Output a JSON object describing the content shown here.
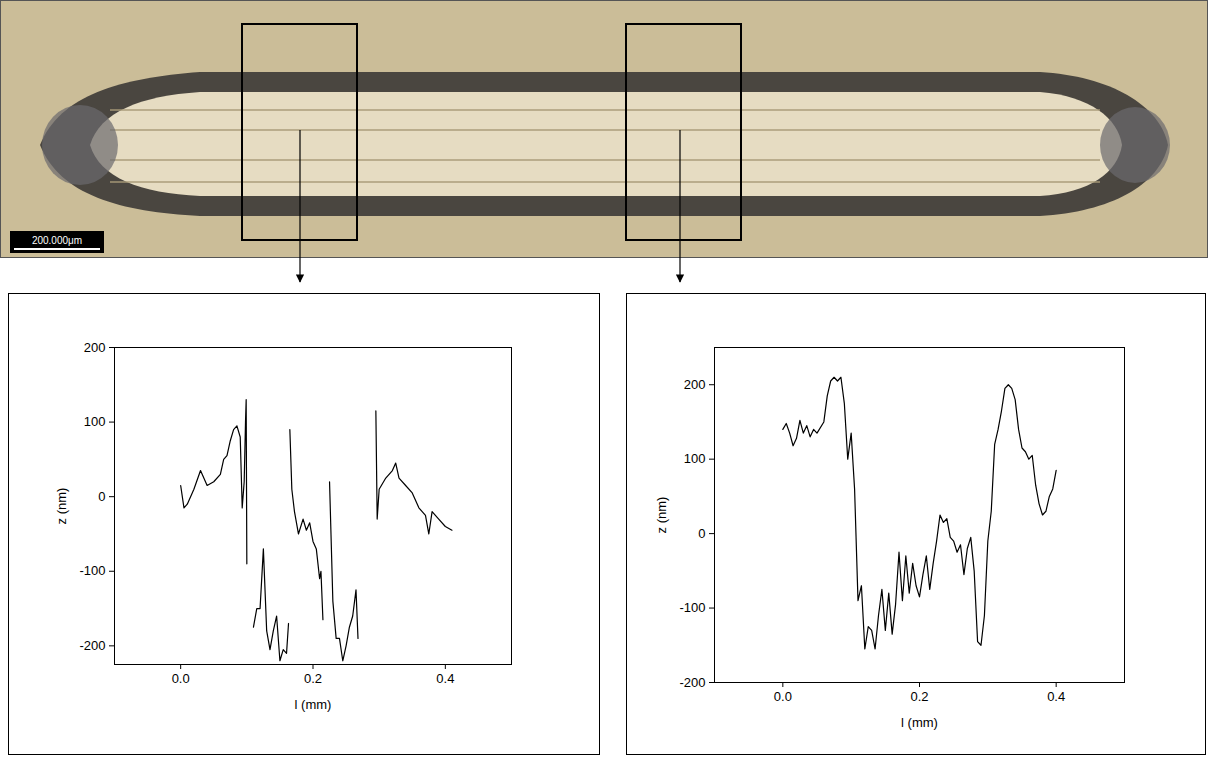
{
  "micrograph": {
    "scale_bar": "200.000μm"
  },
  "chart_data": [
    {
      "type": "line",
      "xlabel": "l (mm)",
      "ylabel": "z (nm)",
      "color": "#000000",
      "xlim": [
        -0.1,
        0.5
      ],
      "ylim": [
        -225,
        200
      ],
      "xticks": [
        {
          "value": 0,
          "label": "0.0"
        },
        {
          "value": 0.2,
          "label": "0.2"
        },
        {
          "value": 0.4,
          "label": "0.4"
        }
      ],
      "yticks": [
        -200,
        -100,
        0,
        100,
        200
      ],
      "x": [
        0,
        0.005,
        0.01,
        0.02,
        0.03,
        0.04,
        0.05,
        0.06,
        0.065,
        0.07,
        0.075,
        0.08,
        0.085,
        0.09,
        0.093,
        0.096,
        0.098,
        0.099,
        0.1,
        0.105,
        0.11,
        0.115,
        0.12,
        0.125,
        0.13,
        0.135,
        0.14,
        0.145,
        0.15,
        0.155,
        0.16,
        0.163,
        0.164,
        0.165,
        0.168,
        0.172,
        0.178,
        0.185,
        0.19,
        0.195,
        0.2,
        0.205,
        0.21,
        0.212,
        0.215,
        0.22,
        0.225,
        0.23,
        0.235,
        0.24,
        0.245,
        0.25,
        0.255,
        0.26,
        0.265,
        0.268,
        0.28,
        0.295,
        0.297,
        0.3,
        0.31,
        0.32,
        0.325,
        0.33,
        0.34,
        0.35,
        0.36,
        0.37,
        0.375,
        0.38,
        0.39,
        0.4,
        0.41
      ],
      "values": [
        15,
        -15,
        -10,
        10,
        35,
        15,
        20,
        30,
        50,
        55,
        75,
        90,
        95,
        80,
        -15,
        20,
        100,
        130,
        -90,
        null,
        -175,
        -150,
        -150,
        -70,
        -180,
        -205,
        -180,
        -160,
        -220,
        -205,
        -210,
        -170,
        null,
        90,
        10,
        -20,
        -50,
        -30,
        -45,
        -35,
        -60,
        -70,
        -110,
        -100,
        -165,
        null,
        20,
        -140,
        -190,
        -190,
        -220,
        -200,
        -175,
        -160,
        -125,
        -190,
        null,
        115,
        -30,
        10,
        25,
        35,
        45,
        25,
        15,
        5,
        -15,
        -25,
        -50,
        -20,
        -30,
        -40,
        -45
      ]
    },
    {
      "type": "line",
      "xlabel": "l (mm)",
      "ylabel": "z (nm)",
      "color": "#000000",
      "xlim": [
        -0.1,
        0.5
      ],
      "ylim": [
        -200,
        250
      ],
      "xticks": [
        {
          "value": 0,
          "label": "0.0"
        },
        {
          "value": 0.2,
          "label": "0.2"
        },
        {
          "value": 0.4,
          "label": "0.4"
        }
      ],
      "yticks": [
        -200,
        -100,
        0,
        100,
        200
      ],
      "x": [
        0,
        0.005,
        0.01,
        0.015,
        0.02,
        0.025,
        0.03,
        0.035,
        0.04,
        0.045,
        0.05,
        0.06,
        0.065,
        0.07,
        0.075,
        0.08,
        0.085,
        0.09,
        0.095,
        0.1,
        0.105,
        0.11,
        0.115,
        0.12,
        0.125,
        0.13,
        0.135,
        0.14,
        0.145,
        0.15,
        0.155,
        0.16,
        0.165,
        0.17,
        0.175,
        0.18,
        0.185,
        0.19,
        0.195,
        0.2,
        0.205,
        0.21,
        0.215,
        0.22,
        0.225,
        0.23,
        0.235,
        0.24,
        0.245,
        0.25,
        0.255,
        0.26,
        0.265,
        0.27,
        0.275,
        0.28,
        0.285,
        0.29,
        0.295,
        0.3,
        0.305,
        0.31,
        0.315,
        0.32,
        0.325,
        0.33,
        0.335,
        0.34,
        0.345,
        0.35,
        0.355,
        0.36,
        0.365,
        0.37,
        0.375,
        0.38,
        0.385,
        0.39,
        0.395,
        0.4
      ],
      "values": [
        140,
        148,
        135,
        118,
        128,
        152,
        135,
        145,
        130,
        140,
        135,
        150,
        185,
        205,
        210,
        205,
        210,
        175,
        100,
        135,
        60,
        -90,
        -70,
        -155,
        -125,
        -130,
        -155,
        -110,
        -75,
        -130,
        -80,
        -135,
        -95,
        -25,
        -90,
        -30,
        -80,
        -40,
        -70,
        -85,
        -55,
        -30,
        -75,
        -40,
        -10,
        25,
        15,
        20,
        -5,
        -10,
        -25,
        -15,
        -55,
        -20,
        -5,
        -50,
        -145,
        -150,
        -110,
        -10,
        30,
        120,
        140,
        165,
        195,
        200,
        195,
        180,
        140,
        115,
        110,
        100,
        105,
        65,
        40,
        25,
        30,
        50,
        60,
        85
      ]
    }
  ]
}
